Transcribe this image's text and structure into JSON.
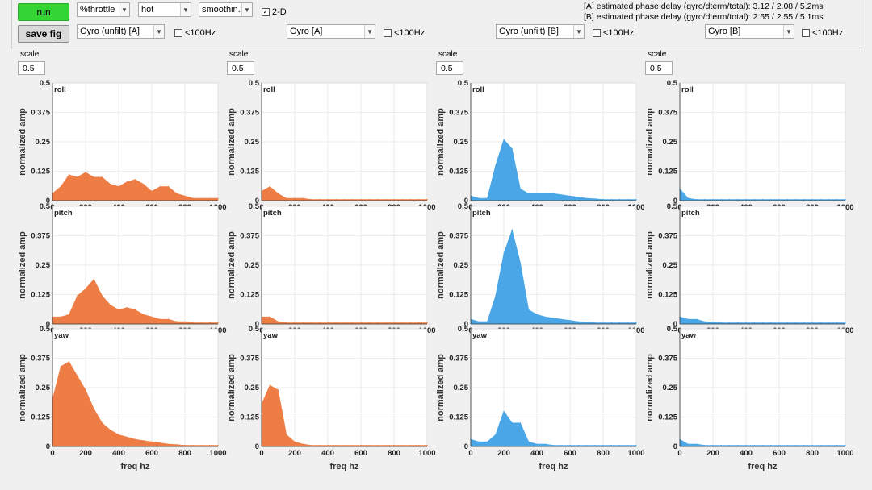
{
  "controls": {
    "run_label": "run",
    "save_label": "save fig",
    "throttle_select": "%throttle",
    "colormap_select": "hot",
    "smoothing_select": "smoothin...",
    "twod_label": "2-D",
    "lt100_label": "<100Hz"
  },
  "info": {
    "line_a": "[A] estimated phase delay (gyro/dterm/total): 3.12 / 2.08 / 5.2ms",
    "line_b": "[B] estimated phase delay (gyro/dterm/total): 2.55 / 2.55 / 5.1ms"
  },
  "columns": [
    {
      "source": "Gyro (unfilt) [A]",
      "scale_label": "scale",
      "scale": "0.5"
    },
    {
      "source": "Gyro [A]",
      "scale_label": "scale",
      "scale": "0.5"
    },
    {
      "source": "Gyro (unfilt) [B]",
      "scale_label": "scale",
      "scale": "0.5"
    },
    {
      "source": "Gyro [B]",
      "scale_label": "scale",
      "scale": "0.5"
    }
  ],
  "colors": {
    "A": "#ed7d44",
    "B": "#4aa6e6"
  },
  "chart_data": {
    "type": "area",
    "ylabel": "normalized amp",
    "xlabel": "freq hz",
    "xlim": [
      0,
      1000
    ],
    "ylim": [
      0,
      0.5
    ],
    "xticks": [
      0,
      200,
      400,
      600,
      800,
      1000
    ],
    "yticks": [
      0,
      0.125,
      0.25,
      0.375,
      0.5
    ],
    "ytick_labels": [
      "0",
      "0.125",
      "0.25",
      "0.375",
      "0.5"
    ],
    "x": [
      0,
      50,
      100,
      150,
      200,
      250,
      300,
      350,
      400,
      450,
      500,
      550,
      600,
      650,
      700,
      750,
      800,
      850,
      900,
      950,
      1000
    ],
    "panels": [
      {
        "row": "roll",
        "column": "Gyro (unfilt) [A]",
        "color": "A",
        "values": [
          0.03,
          0.06,
          0.11,
          0.1,
          0.12,
          0.1,
          0.1,
          0.07,
          0.06,
          0.08,
          0.09,
          0.07,
          0.04,
          0.06,
          0.06,
          0.03,
          0.02,
          0.01,
          0.01,
          0.01,
          0.01
        ]
      },
      {
        "row": "roll",
        "column": "Gyro [A]",
        "color": "A",
        "values": [
          0.04,
          0.06,
          0.03,
          0.01,
          0.01,
          0.01,
          0.005,
          0.005,
          0.005,
          0.005,
          0.005,
          0.005,
          0.005,
          0.005,
          0.005,
          0.005,
          0.005,
          0.005,
          0.005,
          0.005,
          0.005
        ]
      },
      {
        "row": "roll",
        "column": "Gyro (unfilt) [B]",
        "color": "B",
        "values": [
          0.02,
          0.01,
          0.01,
          0.15,
          0.26,
          0.22,
          0.05,
          0.03,
          0.03,
          0.03,
          0.03,
          0.025,
          0.02,
          0.015,
          0.01,
          0.008,
          0.005,
          0.005,
          0.005,
          0.005,
          0.005
        ]
      },
      {
        "row": "roll",
        "column": "Gyro [B]",
        "color": "B",
        "values": [
          0.05,
          0.01,
          0.005,
          0.005,
          0.005,
          0.005,
          0.005,
          0.005,
          0.005,
          0.005,
          0.005,
          0.005,
          0.005,
          0.005,
          0.005,
          0.005,
          0.005,
          0.005,
          0.005,
          0.005,
          0.005
        ]
      },
      {
        "row": "pitch",
        "column": "Gyro (unfilt) [A]",
        "color": "A",
        "values": [
          0.03,
          0.03,
          0.04,
          0.12,
          0.15,
          0.19,
          0.12,
          0.08,
          0.06,
          0.07,
          0.06,
          0.04,
          0.03,
          0.02,
          0.02,
          0.01,
          0.01,
          0.005,
          0.005,
          0.005,
          0.005
        ]
      },
      {
        "row": "pitch",
        "column": "Gyro [A]",
        "color": "A",
        "values": [
          0.03,
          0.03,
          0.01,
          0.005,
          0.005,
          0.005,
          0.005,
          0.005,
          0.005,
          0.005,
          0.005,
          0.005,
          0.005,
          0.005,
          0.005,
          0.005,
          0.005,
          0.005,
          0.005,
          0.005,
          0.005
        ]
      },
      {
        "row": "pitch",
        "column": "Gyro (unfilt) [B]",
        "color": "B",
        "values": [
          0.02,
          0.01,
          0.01,
          0.12,
          0.3,
          0.4,
          0.26,
          0.06,
          0.04,
          0.03,
          0.025,
          0.02,
          0.015,
          0.01,
          0.008,
          0.005,
          0.005,
          0.005,
          0.005,
          0.005,
          0.005
        ]
      },
      {
        "row": "pitch",
        "column": "Gyro [B]",
        "color": "B",
        "values": [
          0.03,
          0.02,
          0.02,
          0.01,
          0.008,
          0.005,
          0.005,
          0.005,
          0.005,
          0.005,
          0.005,
          0.005,
          0.005,
          0.005,
          0.005,
          0.005,
          0.005,
          0.005,
          0.005,
          0.005,
          0.005
        ]
      },
      {
        "row": "yaw",
        "column": "Gyro (unfilt) [A]",
        "color": "A",
        "values": [
          0.2,
          0.34,
          0.36,
          0.3,
          0.24,
          0.16,
          0.1,
          0.07,
          0.05,
          0.04,
          0.03,
          0.025,
          0.02,
          0.015,
          0.01,
          0.008,
          0.005,
          0.005,
          0.005,
          0.005,
          0.005
        ]
      },
      {
        "row": "yaw",
        "column": "Gyro [A]",
        "color": "A",
        "values": [
          0.18,
          0.26,
          0.24,
          0.05,
          0.02,
          0.01,
          0.005,
          0.005,
          0.005,
          0.005,
          0.005,
          0.005,
          0.005,
          0.005,
          0.005,
          0.005,
          0.005,
          0.005,
          0.005,
          0.005,
          0.005
        ]
      },
      {
        "row": "yaw",
        "column": "Gyro (unfilt) [B]",
        "color": "B",
        "values": [
          0.03,
          0.02,
          0.02,
          0.05,
          0.15,
          0.1,
          0.1,
          0.02,
          0.01,
          0.01,
          0.005,
          0.005,
          0.005,
          0.005,
          0.005,
          0.005,
          0.005,
          0.005,
          0.005,
          0.005,
          0.005
        ]
      },
      {
        "row": "yaw",
        "column": "Gyro [B]",
        "color": "B",
        "values": [
          0.03,
          0.01,
          0.01,
          0.005,
          0.005,
          0.005,
          0.005,
          0.005,
          0.005,
          0.005,
          0.005,
          0.005,
          0.005,
          0.005,
          0.005,
          0.005,
          0.005,
          0.005,
          0.005,
          0.005,
          0.005
        ]
      }
    ]
  }
}
